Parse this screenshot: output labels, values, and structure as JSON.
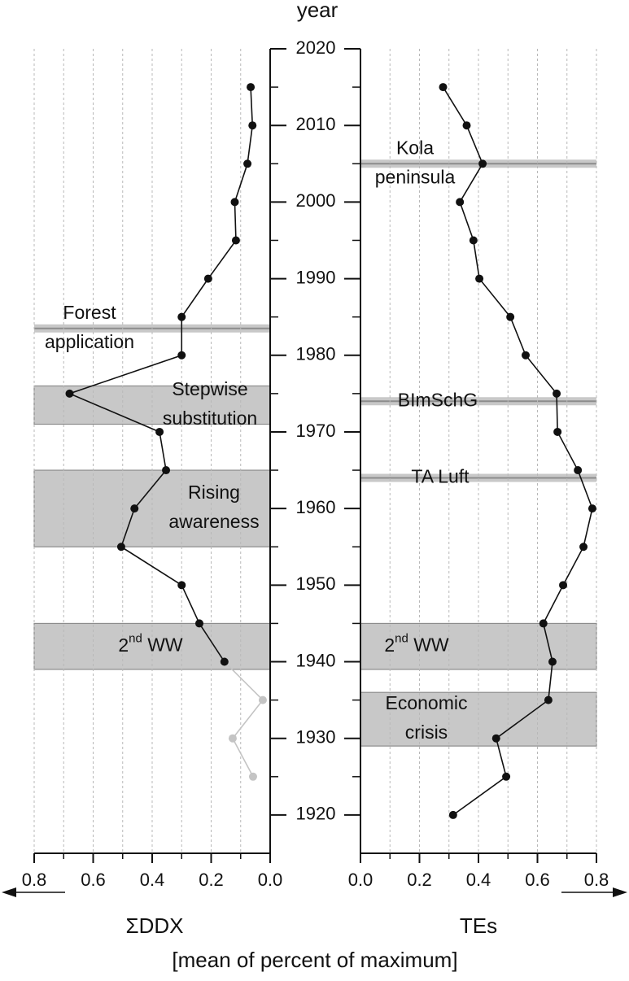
{
  "chart_data": {
    "type": "line",
    "ylabel": "year",
    "xlabel": "[mean of percent of maximum]",
    "ylim": [
      1915,
      2020
    ],
    "yticks": [
      1920,
      1930,
      1940,
      1950,
      1960,
      1970,
      1980,
      1990,
      2000,
      2010,
      2020
    ],
    "yminorticks": [
      1925,
      1935,
      1945,
      1955,
      1965,
      1975,
      1985,
      1995,
      2005,
      2015
    ],
    "grid": true,
    "panels": [
      {
        "xlabel": "ΣDDX",
        "xlim": [
          0.8,
          0
        ],
        "xticks": [
          0.8,
          0.6,
          0.4,
          0.2,
          {
            "value": 0,
            "label": "0.0"
          }
        ],
        "xminorticks": [
          0.7,
          0.5,
          0.3,
          0.1
        ],
        "x": [
          2015,
          2010,
          2005,
          2000,
          1995,
          1990,
          1985,
          1980,
          1975,
          1970,
          1965,
          1960,
          1955,
          1950,
          1945,
          1940,
          1935,
          1930,
          1925
        ],
        "series": [
          {
            "color": "#111111",
            "values": [
              0.066,
              0.06,
              0.077,
              0.12,
              0.116,
              0.21,
              0.3,
              0.3,
              0.68,
              0.375,
              0.353,
              0.46,
              0.505,
              0.3,
              0.24,
              0.155,
              null,
              null,
              null
            ]
          },
          {
            "color": "#c4c4c4",
            "values": [
              null,
              null,
              null,
              null,
              null,
              null,
              null,
              null,
              null,
              null,
              null,
              null,
              null,
              null,
              null,
              0.155,
              0.025,
              0.127,
              0.058
            ]
          }
        ],
        "events": [
          {
            "label": [
              "Forest",
              "application"
            ],
            "from": 1983.5,
            "to": 1983.5
          },
          {
            "label": [
              "Stepwise",
              "substitution"
            ],
            "from": 1971,
            "to": 1976
          },
          {
            "label": [
              "Rising",
              "awareness"
            ],
            "from": 1955,
            "to": 1965
          },
          {
            "label": [
              "2nd WW"
            ],
            "from": 1939,
            "to": 1945
          }
        ]
      },
      {
        "xlabel": "TEs",
        "xlim": [
          0,
          0.8
        ],
        "xticks": [
          {
            "value": 0,
            "label": "0.0"
          },
          0.2,
          0.4,
          0.6,
          0.8
        ],
        "xminorticks": [
          0.1,
          0.3,
          0.5,
          0.7
        ],
        "x": [
          2015,
          2010,
          2005,
          2000,
          1995,
          1990,
          1985,
          1980,
          1975,
          1970,
          1965,
          1960,
          1955,
          1950,
          1945,
          1940,
          1935,
          1930,
          1925,
          1920
        ],
        "series": [
          {
            "color": "#111111",
            "values": [
              0.28,
              0.36,
              0.414,
              0.337,
              0.383,
              0.403,
              0.508,
              0.56,
              0.665,
              0.668,
              0.737,
              0.786,
              0.756,
              0.687,
              0.62,
              0.651,
              0.637,
              0.46,
              0.494,
              0.314
            ]
          }
        ],
        "events": [
          {
            "label": [
              "Kola",
              "peninsula"
            ],
            "from": 2005,
            "to": 2005
          },
          {
            "label": [
              "BImSchG"
            ],
            "from": 1974,
            "to": 1974
          },
          {
            "label": [
              "TA Luft"
            ],
            "from": 1964,
            "to": 1964
          },
          {
            "label": [
              "2nd WW"
            ],
            "from": 1939,
            "to": 1945
          },
          {
            "label": [
              "Economic",
              "crisis"
            ],
            "from": 1929,
            "to": 1936
          }
        ]
      }
    ]
  }
}
